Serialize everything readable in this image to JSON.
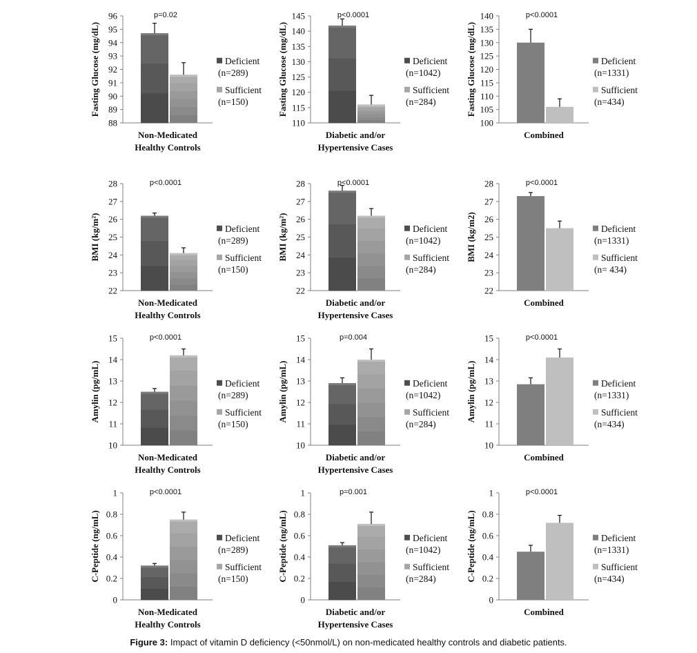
{
  "caption": {
    "label": "Figure 3:",
    "text": " Impact of vitamin D deficiency (<50nmol/L) on non-medicated healthy controls and diabetic patients."
  },
  "colors": {
    "deficient": "#7f7f7f",
    "sufficient": "#bfbfbf",
    "deficient_dark": "#4d4d4d",
    "sufficient_mid": "#a6a6a6"
  },
  "chart_data": [
    {
      "type": "bar",
      "ylabel": "Fasting Glucose (mg/dL)",
      "ylim": [
        88,
        96
      ],
      "yticks": [
        88,
        89,
        90,
        91,
        92,
        93,
        94,
        95,
        96
      ],
      "categories": [
        "Non-Medicated",
        "Healthy Controls"
      ],
      "pvalue": "p=0.02",
      "series": [
        {
          "name": "Deficient",
          "n": "(n=289)",
          "value": 94.7,
          "err": 0.75
        },
        {
          "name": "Sufficient",
          "n": "(n=150)",
          "value": 91.6,
          "err": 0.9
        }
      ]
    },
    {
      "type": "bar",
      "ylabel": "Fasting Glucose (mg/dL)",
      "ylim": [
        110,
        145
      ],
      "yticks": [
        110,
        115,
        120,
        125,
        130,
        135,
        140,
        145
      ],
      "categories": [
        "Diabetic and/or",
        "Hypertensive Cases"
      ],
      "pvalue": "p<0.0001",
      "series": [
        {
          "name": "Deficient",
          "n": "(n=1042)",
          "value": 141.8,
          "err": 2.2
        },
        {
          "name": "Sufficient",
          "n": "(n=284)",
          "value": 116,
          "err": 3
        }
      ]
    },
    {
      "type": "bar",
      "ylabel": "Fasting Glucose (mg/dL)",
      "ylim": [
        100,
        140
      ],
      "yticks": [
        100,
        105,
        110,
        115,
        120,
        125,
        130,
        135,
        140
      ],
      "categories": [
        "Combined"
      ],
      "pvalue": "p<0.0001",
      "series": [
        {
          "name": "Deficient",
          "n": "(n=1331)",
          "value": 130,
          "err": 5
        },
        {
          "name": "Sufficient",
          "n": "(n=434)",
          "value": 106,
          "err": 3
        }
      ]
    },
    {
      "type": "bar",
      "ylabel": "BMI (kg/m²)",
      "ylim": [
        22,
        28
      ],
      "yticks": [
        22,
        23,
        24,
        25,
        26,
        27,
        28
      ],
      "categories": [
        "Non-Medicated",
        "Healthy Controls"
      ],
      "pvalue": "p<0.0001",
      "series": [
        {
          "name": "Deficient",
          "n": "(n=289)",
          "value": 26.2,
          "err": 0.15
        },
        {
          "name": "Sufficient",
          "n": "(n=150)",
          "value": 24.1,
          "err": 0.3
        }
      ]
    },
    {
      "type": "bar",
      "ylabel": "BMI (kg/m²)",
      "ylim": [
        22,
        28
      ],
      "yticks": [
        22,
        23,
        24,
        25,
        26,
        27,
        28
      ],
      "categories": [
        "Diabetic and/or",
        "Hypertensive Cases"
      ],
      "pvalue": "p<0.0001",
      "series": [
        {
          "name": "Deficient",
          "n": "(n=1042)",
          "value": 27.6,
          "err": 0.3
        },
        {
          "name": "Sufficient",
          "n": "(n=284)",
          "value": 26.2,
          "err": 0.4
        }
      ]
    },
    {
      "type": "bar",
      "ylabel": "BMI (kg/m2)",
      "ylim": [
        22,
        28
      ],
      "yticks": [
        22,
        23,
        24,
        25,
        26,
        27,
        28
      ],
      "categories": [
        "Combined"
      ],
      "pvalue": "p<0.0001",
      "series": [
        {
          "name": "Deficient",
          "n": "(n=1331)",
          "value": 27.3,
          "err": 0.2
        },
        {
          "name": "Sufficient",
          "n": "(n= 434)",
          "value": 25.5,
          "err": 0.4
        }
      ]
    },
    {
      "type": "bar",
      "ylabel": "Amylin (pg/mL)",
      "ylim": [
        10,
        15
      ],
      "yticks": [
        10,
        11,
        12,
        13,
        14,
        15
      ],
      "categories": [
        "Non-Medicated",
        "Healthy Controls"
      ],
      "pvalue": "p<0.0001",
      "series": [
        {
          "name": "Deficient",
          "n": "(n=289)",
          "value": 12.5,
          "err": 0.15
        },
        {
          "name": "Sufficient",
          "n": "(n=150)",
          "value": 14.2,
          "err": 0.3
        }
      ]
    },
    {
      "type": "bar",
      "ylabel": "Amylin (pg/mL)",
      "ylim": [
        10,
        15
      ],
      "yticks": [
        10,
        11,
        12,
        13,
        14,
        15
      ],
      "categories": [
        "Diabetic and/or",
        "Hypertensive Cases"
      ],
      "pvalue": "p=0.004",
      "series": [
        {
          "name": "Deficient",
          "n": "(n=1042)",
          "value": 12.9,
          "err": 0.25
        },
        {
          "name": "Sufficient",
          "n": "(n=284)",
          "value": 14.0,
          "err": 0.5
        }
      ]
    },
    {
      "type": "bar",
      "ylabel": "Amylin (pg/mL)",
      "ylim": [
        10,
        15
      ],
      "yticks": [
        10,
        11,
        12,
        13,
        14,
        15
      ],
      "categories": [
        "Combined"
      ],
      "pvalue": "p<0.0001",
      "series": [
        {
          "name": "Deficient",
          "n": "(n=1331)",
          "value": 12.85,
          "err": 0.3
        },
        {
          "name": "Sufficient",
          "n": "(n=434)",
          "value": 14.1,
          "err": 0.4
        }
      ]
    },
    {
      "type": "bar",
      "ylabel": "C-Peptide (ng/mL)",
      "ylim": [
        0,
        1
      ],
      "yticks": [
        0,
        0.2,
        0.4,
        0.6,
        0.8,
        1
      ],
      "categories": [
        "Non-Medicated",
        "Healthy Controls"
      ],
      "pvalue": "p<0.0001",
      "series": [
        {
          "name": "Deficient",
          "n": "(n=289)",
          "value": 0.32,
          "err": 0.02
        },
        {
          "name": "Sufficient",
          "n": "(n=150)",
          "value": 0.75,
          "err": 0.07
        }
      ]
    },
    {
      "type": "bar",
      "ylabel": "C-Peptide (ng/mL)",
      "ylim": [
        0,
        1
      ],
      "yticks": [
        0,
        0.2,
        0.4,
        0.6,
        0.8,
        1
      ],
      "categories": [
        "Diabetic and/or",
        "Hypertensive Cases"
      ],
      "pvalue": "p=0.001",
      "series": [
        {
          "name": "Deficient",
          "n": "(n=1042)",
          "value": 0.51,
          "err": 0.025
        },
        {
          "name": "Sufficient",
          "n": "(n=284)",
          "value": 0.71,
          "err": 0.11
        }
      ]
    },
    {
      "type": "bar",
      "ylabel": "C-Peptide (ng/mL)",
      "ylim": [
        0,
        1
      ],
      "yticks": [
        0,
        0.2,
        0.4,
        0.6,
        0.8,
        1
      ],
      "categories": [
        "Combined"
      ],
      "pvalue": "p<0.0001",
      "series": [
        {
          "name": "Deficient",
          "n": "(n=1331)",
          "value": 0.45,
          "err": 0.06
        },
        {
          "name": "Sufficient",
          "n": "(n=434)",
          "value": 0.72,
          "err": 0.07
        }
      ]
    }
  ]
}
